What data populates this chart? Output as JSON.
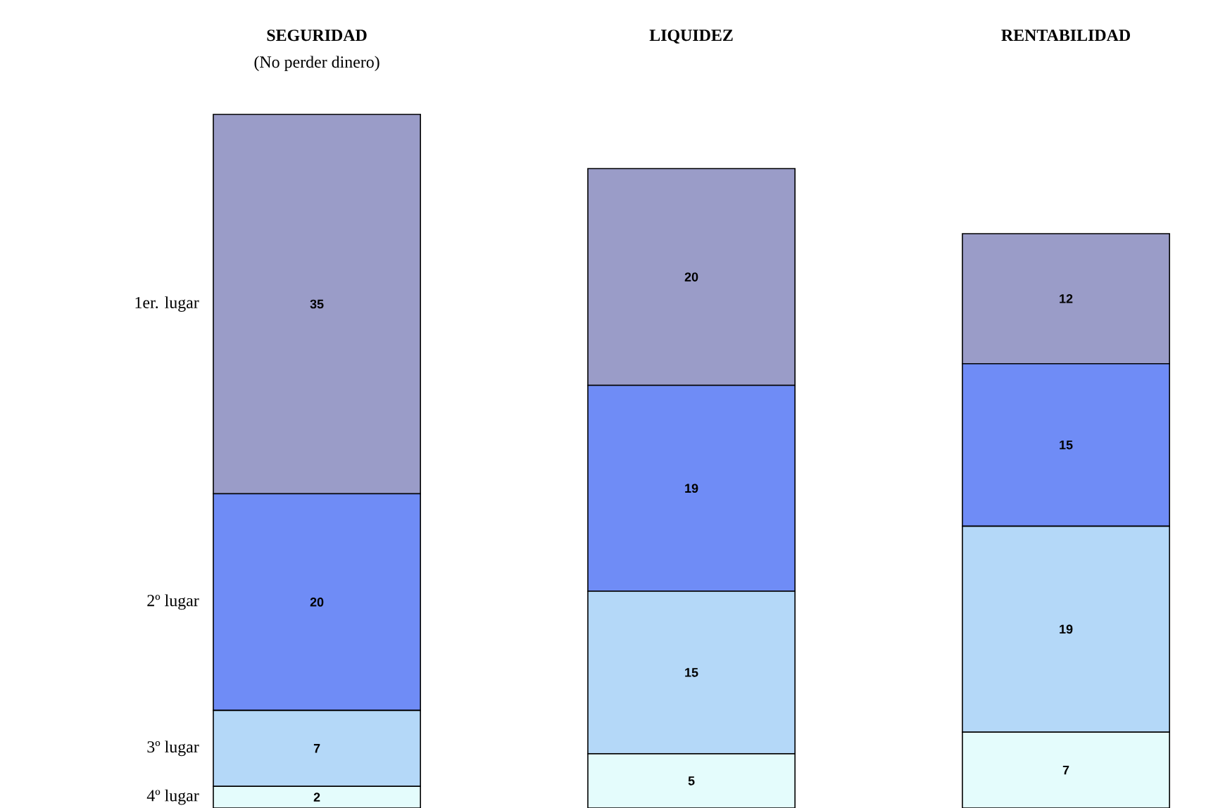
{
  "chart_data": {
    "type": "bar",
    "stacked": true,
    "data_labels": true,
    "categories": [
      "SEGURIDAD",
      "LIQUIDEZ",
      "RENTABILIDAD"
    ],
    "annotations": [
      "(No perder dinero)"
    ],
    "series": [
      {
        "name": "4º lugar",
        "color": "#e4fcfc",
        "values": [
          2,
          5,
          7
        ]
      },
      {
        "name": "3º lugar",
        "color": "#b4d8f8",
        "values": [
          7,
          15,
          19
        ]
      },
      {
        "name": "2º lugar",
        "color": "#6f8cf6",
        "values": [
          20,
          19,
          15
        ]
      },
      {
        "name": "1er. lugar",
        "color": "#9a9cc8",
        "values": [
          35,
          20,
          12
        ]
      }
    ]
  }
}
